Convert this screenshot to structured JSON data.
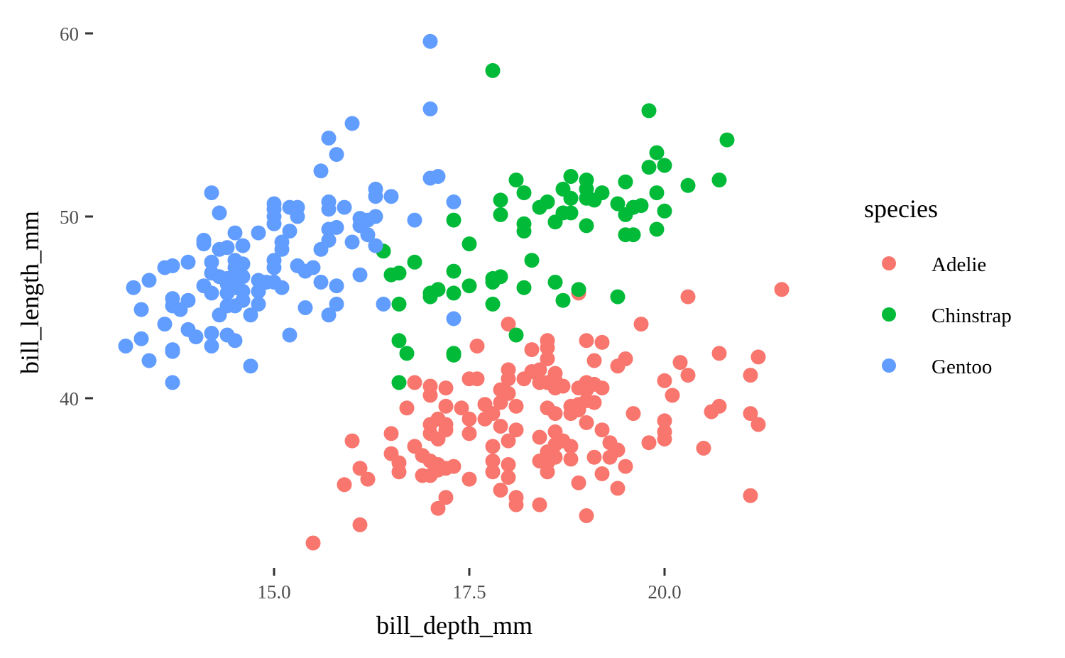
{
  "chart_data": {
    "type": "scatter",
    "xlabel": "bill_depth_mm",
    "ylabel": "bill_length_mm",
    "xlim": [
      12.68,
      21.92
    ],
    "ylim": [
      30.7,
      61.0
    ],
    "xticks": [
      "15.0",
      "17.5",
      "20.0"
    ],
    "yticks": [
      "40",
      "50",
      "60"
    ],
    "grid": false,
    "legend": {
      "title": "species",
      "placement": "right"
    },
    "series": [
      {
        "name": "Adelie",
        "color": "#F8766D",
        "points": [
          [
            21.5,
            46.0
          ],
          [
            20.3,
            45.6
          ],
          [
            19.7,
            44.1
          ],
          [
            18.0,
            44.1
          ],
          [
            17.6,
            42.9
          ],
          [
            18.5,
            43.2
          ],
          [
            18.5,
            42.8
          ],
          [
            18.5,
            42.2
          ],
          [
            19.0,
            43.2
          ],
          [
            19.2,
            43.1
          ],
          [
            18.3,
            42.7
          ],
          [
            19.1,
            42.1
          ],
          [
            19.5,
            42.2
          ],
          [
            19.4,
            41.8
          ],
          [
            20.7,
            42.5
          ],
          [
            21.2,
            42.3
          ],
          [
            20.2,
            42.0
          ],
          [
            20.3,
            41.3
          ],
          [
            21.1,
            41.3
          ],
          [
            18.0,
            41.6
          ],
          [
            18.3,
            41.5
          ],
          [
            18.4,
            41.6
          ],
          [
            18.2,
            41.1
          ],
          [
            18.0,
            41.1
          ],
          [
            17.5,
            41.1
          ],
          [
            17.6,
            41.1
          ],
          [
            16.8,
            40.9
          ],
          [
            17.0,
            40.7
          ],
          [
            17.0,
            40.2
          ],
          [
            17.2,
            40.6
          ],
          [
            18.6,
            41.4
          ],
          [
            18.6,
            41.0
          ],
          [
            18.5,
            40.9
          ],
          [
            18.4,
            40.9
          ],
          [
            18.7,
            40.7
          ],
          [
            18.6,
            40.6
          ],
          [
            18.9,
            40.6
          ],
          [
            19.0,
            40.9
          ],
          [
            19.1,
            40.8
          ],
          [
            19.0,
            40.5
          ],
          [
            19.2,
            40.6
          ],
          [
            17.9,
            40.5
          ],
          [
            18.0,
            40.3
          ],
          [
            17.9,
            39.8
          ],
          [
            20.0,
            41.0
          ],
          [
            20.1,
            40.2
          ],
          [
            16.7,
            39.5
          ],
          [
            17.2,
            39.6
          ],
          [
            17.2,
            38.6
          ],
          [
            17.4,
            39.5
          ],
          [
            17.7,
            39.7
          ],
          [
            17.8,
            39.2
          ],
          [
            17.7,
            38.9
          ],
          [
            18.1,
            39.6
          ],
          [
            18.1,
            38.3
          ],
          [
            18.0,
            37.7
          ],
          [
            18.5,
            39.5
          ],
          [
            18.6,
            39.2
          ],
          [
            18.8,
            39.6
          ],
          [
            18.9,
            39.7
          ],
          [
            19.0,
            39.9
          ],
          [
            19.1,
            39.8
          ],
          [
            18.8,
            39.2
          ],
          [
            18.9,
            39.4
          ],
          [
            19.6,
            39.2
          ],
          [
            20.6,
            39.3
          ],
          [
            20.7,
            39.6
          ],
          [
            21.1,
            39.2
          ],
          [
            21.2,
            38.6
          ],
          [
            20.0,
            38.8
          ],
          [
            20.0,
            38.2
          ],
          [
            20.0,
            37.8
          ],
          [
            19.8,
            37.6
          ],
          [
            20.5,
            37.3
          ],
          [
            16.0,
            37.7
          ],
          [
            16.5,
            38.1
          ],
          [
            17.0,
            38.6
          ],
          [
            17.1,
            38.9
          ],
          [
            17.0,
            38.1
          ],
          [
            17.1,
            37.8
          ],
          [
            17.2,
            38.3
          ],
          [
            17.5,
            38.9
          ],
          [
            17.5,
            38.1
          ],
          [
            17.9,
            38.5
          ],
          [
            18.6,
            38.2
          ],
          [
            18.7,
            37.7
          ],
          [
            18.4,
            37.9
          ],
          [
            18.6,
            37.5
          ],
          [
            18.8,
            37.4
          ],
          [
            18.5,
            37.1
          ],
          [
            18.6,
            36.8
          ],
          [
            19.0,
            38.7
          ],
          [
            19.2,
            38.3
          ],
          [
            19.3,
            37.6
          ],
          [
            19.4,
            37.2
          ],
          [
            19.3,
            36.8
          ],
          [
            16.5,
            37.0
          ],
          [
            16.8,
            37.4
          ],
          [
            16.9,
            36.9
          ],
          [
            17.0,
            36.6
          ],
          [
            17.1,
            36.4
          ],
          [
            17.2,
            36.2
          ],
          [
            17.3,
            36.3
          ],
          [
            16.6,
            36.5
          ],
          [
            16.6,
            36.0
          ],
          [
            16.1,
            36.2
          ],
          [
            16.2,
            35.6
          ],
          [
            15.9,
            35.3
          ],
          [
            16.9,
            35.8
          ],
          [
            17.0,
            35.8
          ],
          [
            17.1,
            36.1
          ],
          [
            17.5,
            35.6
          ],
          [
            17.8,
            37.4
          ],
          [
            17.8,
            36.6
          ],
          [
            17.8,
            36.0
          ],
          [
            17.9,
            35.0
          ],
          [
            18.0,
            36.4
          ],
          [
            18.0,
            35.7
          ],
          [
            18.4,
            36.6
          ],
          [
            18.5,
            36.5
          ],
          [
            18.5,
            36.0
          ],
          [
            18.8,
            36.7
          ],
          [
            19.1,
            36.8
          ],
          [
            19.2,
            35.9
          ],
          [
            19.5,
            36.3
          ],
          [
            18.9,
            35.4
          ],
          [
            19.4,
            35.1
          ],
          [
            18.1,
            34.6
          ],
          [
            18.1,
            34.2
          ],
          [
            17.2,
            34.6
          ],
          [
            17.1,
            34.0
          ],
          [
            18.4,
            34.2
          ],
          [
            19.0,
            33.6
          ],
          [
            21.1,
            34.7
          ],
          [
            16.1,
            33.1
          ],
          [
            15.5,
            32.1
          ],
          [
            18.9,
            45.8
          ]
        ]
      },
      {
        "name": "Chinstrap",
        "color": "#00BA38",
        "points": [
          [
            17.8,
            58.0
          ],
          [
            19.8,
            55.8
          ],
          [
            20.8,
            54.2
          ],
          [
            19.9,
            53.5
          ],
          [
            19.8,
            52.7
          ],
          [
            20.0,
            52.8
          ],
          [
            18.1,
            52.0
          ],
          [
            18.8,
            52.2
          ],
          [
            19.0,
            52.0
          ],
          [
            19.0,
            51.5
          ],
          [
            18.2,
            51.3
          ],
          [
            20.3,
            51.7
          ],
          [
            20.7,
            52.0
          ],
          [
            19.5,
            51.9
          ],
          [
            18.7,
            51.5
          ],
          [
            19.0,
            51.0
          ],
          [
            19.2,
            51.3
          ],
          [
            19.9,
            51.3
          ],
          [
            17.9,
            50.9
          ],
          [
            17.9,
            50.1
          ],
          [
            18.5,
            50.8
          ],
          [
            18.4,
            50.5
          ],
          [
            18.8,
            51.0
          ],
          [
            18.8,
            50.2
          ],
          [
            18.7,
            50.2
          ],
          [
            19.1,
            50.9
          ],
          [
            19.4,
            50.7
          ],
          [
            19.6,
            50.5
          ],
          [
            19.7,
            50.6
          ],
          [
            19.5,
            50.1
          ],
          [
            20.0,
            50.3
          ],
          [
            17.3,
            49.8
          ],
          [
            18.2,
            49.6
          ],
          [
            18.2,
            49.2
          ],
          [
            18.6,
            49.7
          ],
          [
            19.0,
            49.5
          ],
          [
            19.9,
            49.3
          ],
          [
            19.5,
            49.0
          ],
          [
            19.6,
            49.0
          ],
          [
            17.5,
            48.5
          ],
          [
            16.4,
            48.1
          ],
          [
            16.8,
            47.5
          ],
          [
            18.3,
            47.6
          ],
          [
            16.5,
            46.8
          ],
          [
            16.6,
            46.9
          ],
          [
            17.3,
            47.0
          ],
          [
            18.6,
            46.4
          ],
          [
            17.5,
            46.2
          ],
          [
            17.8,
            46.6
          ],
          [
            17.9,
            46.7
          ],
          [
            17.8,
            46.4
          ],
          [
            18.9,
            46.0
          ],
          [
            17.0,
            45.8
          ],
          [
            17.1,
            46.0
          ],
          [
            17.0,
            45.6
          ],
          [
            17.3,
            45.8
          ],
          [
            18.2,
            46.1
          ],
          [
            19.4,
            45.6
          ],
          [
            18.7,
            45.4
          ],
          [
            16.6,
            45.2
          ],
          [
            17.8,
            45.2
          ],
          [
            18.1,
            43.5
          ],
          [
            16.6,
            43.2
          ],
          [
            16.7,
            42.5
          ],
          [
            17.3,
            42.5
          ],
          [
            17.3,
            42.4
          ],
          [
            16.6,
            40.9
          ]
        ]
      },
      {
        "name": "Gentoo",
        "color": "#619CFF",
        "points": [
          [
            17.0,
            59.6
          ],
          [
            17.0,
            55.9
          ],
          [
            16.0,
            55.1
          ],
          [
            15.7,
            54.3
          ],
          [
            15.8,
            53.4
          ],
          [
            15.6,
            52.5
          ],
          [
            17.0,
            52.1
          ],
          [
            17.1,
            52.2
          ],
          [
            14.2,
            51.3
          ],
          [
            16.3,
            51.5
          ],
          [
            16.3,
            51.1
          ],
          [
            16.5,
            51.1
          ],
          [
            15.7,
            50.8
          ],
          [
            15.7,
            50.4
          ],
          [
            17.3,
            50.8
          ],
          [
            15.0,
            50.7
          ],
          [
            15.0,
            50.4
          ],
          [
            15.0,
            50.0
          ],
          [
            15.0,
            49.6
          ],
          [
            15.2,
            50.5
          ],
          [
            15.3,
            50.5
          ],
          [
            15.3,
            50.0
          ],
          [
            15.9,
            50.5
          ],
          [
            14.3,
            50.2
          ],
          [
            16.8,
            49.8
          ],
          [
            16.1,
            49.9
          ],
          [
            16.2,
            49.8
          ],
          [
            16.1,
            49.5
          ],
          [
            16.3,
            50.0
          ],
          [
            15.8,
            49.4
          ],
          [
            15.7,
            49.3
          ],
          [
            15.7,
            48.7
          ],
          [
            14.5,
            49.1
          ],
          [
            14.8,
            49.1
          ],
          [
            15.2,
            49.2
          ],
          [
            14.1,
            48.7
          ],
          [
            14.1,
            48.5
          ],
          [
            16.0,
            48.6
          ],
          [
            15.1,
            48.6
          ],
          [
            15.1,
            48.2
          ],
          [
            16.2,
            49.0
          ],
          [
            14.6,
            48.4
          ],
          [
            14.4,
            48.3
          ],
          [
            14.3,
            48.2
          ],
          [
            15.6,
            48.2
          ],
          [
            16.3,
            48.4
          ],
          [
            14.5,
            47.6
          ],
          [
            14.6,
            47.4
          ],
          [
            14.5,
            47.2
          ],
          [
            15.0,
            47.6
          ],
          [
            15.0,
            47.2
          ],
          [
            15.3,
            47.3
          ],
          [
            15.4,
            47.0
          ],
          [
            15.5,
            47.2
          ],
          [
            13.9,
            47.5
          ],
          [
            13.6,
            47.2
          ],
          [
            13.7,
            47.3
          ],
          [
            14.2,
            47.5
          ],
          [
            13.4,
            46.5
          ],
          [
            13.2,
            46.1
          ],
          [
            14.2,
            46.9
          ],
          [
            14.3,
            46.7
          ],
          [
            14.4,
            46.6
          ],
          [
            14.5,
            46.4
          ],
          [
            14.6,
            46.7
          ],
          [
            14.8,
            46.5
          ],
          [
            14.9,
            46.4
          ],
          [
            15.0,
            46.4
          ],
          [
            15.1,
            46.1
          ],
          [
            14.8,
            45.9
          ],
          [
            15.6,
            46.4
          ],
          [
            15.8,
            46.2
          ],
          [
            16.1,
            46.8
          ],
          [
            14.1,
            46.2
          ],
          [
            14.2,
            45.8
          ],
          [
            14.4,
            46.3
          ],
          [
            14.4,
            45.8
          ],
          [
            14.5,
            46.1
          ],
          [
            14.6,
            45.9
          ],
          [
            14.5,
            45.1
          ],
          [
            14.6,
            45.4
          ],
          [
            14.4,
            45.1
          ],
          [
            14.3,
            44.6
          ],
          [
            13.7,
            45.5
          ],
          [
            13.7,
            45.1
          ],
          [
            13.9,
            45.4
          ],
          [
            13.8,
            44.9
          ],
          [
            13.3,
            44.9
          ],
          [
            14.8,
            45.2
          ],
          [
            14.7,
            44.6
          ],
          [
            15.4,
            45.0
          ],
          [
            15.8,
            45.2
          ],
          [
            15.7,
            44.6
          ],
          [
            16.4,
            45.2
          ],
          [
            17.3,
            44.4
          ],
          [
            13.6,
            44.1
          ],
          [
            13.9,
            43.8
          ],
          [
            14.0,
            43.4
          ],
          [
            14.2,
            43.6
          ],
          [
            14.2,
            42.9
          ],
          [
            14.4,
            43.5
          ],
          [
            14.5,
            43.2
          ],
          [
            13.3,
            43.3
          ],
          [
            13.1,
            42.9
          ],
          [
            13.7,
            42.7
          ],
          [
            13.7,
            42.6
          ],
          [
            15.2,
            43.5
          ],
          [
            13.4,
            42.1
          ],
          [
            14.7,
            41.8
          ],
          [
            13.7,
            40.9
          ]
        ]
      }
    ]
  }
}
